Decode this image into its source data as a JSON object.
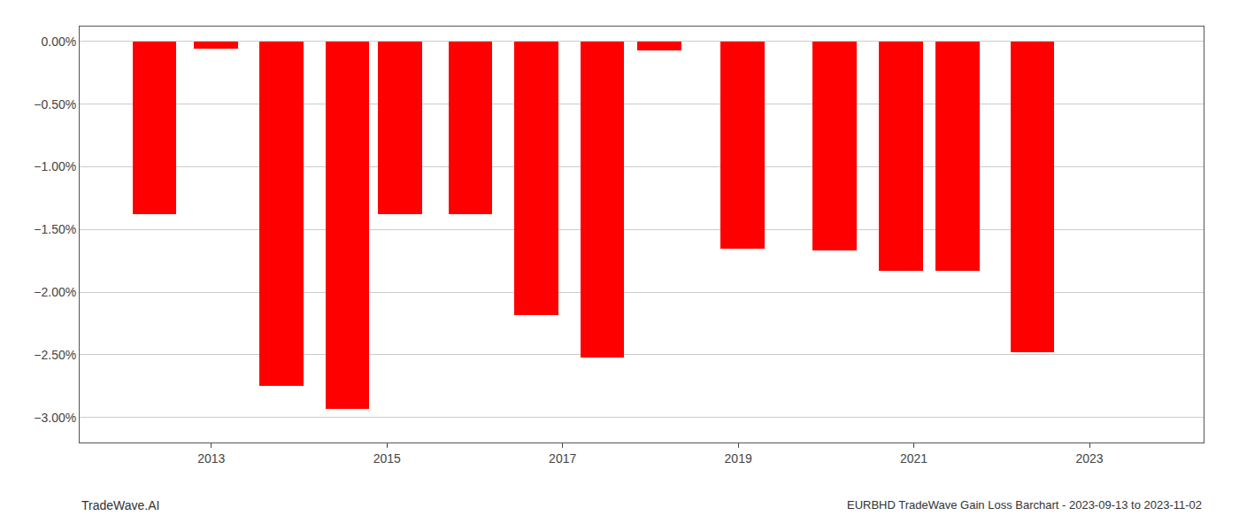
{
  "chart_data": {
    "type": "bar",
    "x": [
      2012.35,
      2013.05,
      2013.8,
      2014.55,
      2015.15,
      2015.95,
      2016.7,
      2017.45,
      2018.1,
      2019.05,
      2020.1,
      2020.85,
      2021.5,
      2022.35
    ],
    "values": [
      -1.38,
      -0.06,
      -2.75,
      -2.93,
      -1.38,
      -1.38,
      -2.18,
      -2.52,
      -0.07,
      -1.65,
      -1.67,
      -1.83,
      -1.83,
      -2.48
    ],
    "color": "#ff0000",
    "xlim": [
      2011.5,
      2024.3
    ],
    "xticks": [
      2013,
      2015,
      2017,
      2019,
      2021,
      2023
    ],
    "ylim": [
      -3.2,
      0.12
    ],
    "yticks": [
      {
        "value": 0.0,
        "label": "0.00%"
      },
      {
        "value": -0.5,
        "label": "−0.50%"
      },
      {
        "value": -1.0,
        "label": "−1.00%"
      },
      {
        "value": -1.5,
        "label": "−1.50%"
      },
      {
        "value": -2.0,
        "label": "−2.00%"
      },
      {
        "value": -2.5,
        "label": "−2.50%"
      },
      {
        "value": -3.0,
        "label": "−3.00%"
      }
    ],
    "grid": true,
    "annotations": [
      "TradeWave.AI",
      "EURBHD TradeWave Gain Loss Barchart - 2023-09-13 to 2023-11-02"
    ]
  }
}
